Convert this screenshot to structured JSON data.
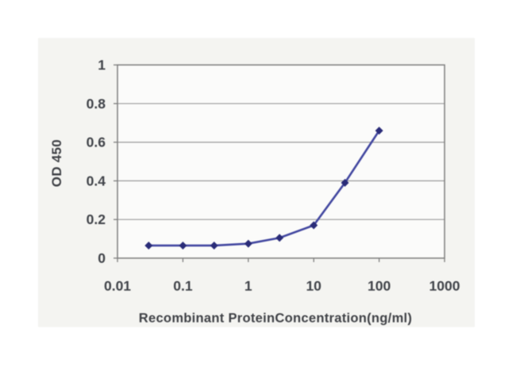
{
  "chart_data": {
    "type": "line",
    "title": "",
    "xlabel": "Recombinant ProteinConcentration(ng/ml)",
    "ylabel": "OD 450",
    "x_scale": "log",
    "xlim": [
      0.01,
      1000
    ],
    "ylim": [
      0,
      1
    ],
    "x_ticks": [
      0.01,
      0.1,
      1,
      10,
      100,
      1000
    ],
    "x_tick_labels": [
      "0.01",
      "0.1",
      "1",
      "10",
      "100",
      "1000"
    ],
    "y_ticks": [
      0,
      0.2,
      0.4,
      0.6,
      0.8,
      1
    ],
    "y_tick_labels": [
      "0",
      "0.2",
      "0.4",
      "0.6",
      "0.8",
      "1"
    ],
    "grid": "horizontal",
    "legend": "none",
    "series": [
      {
        "name": "OD 450",
        "marker": "diamond",
        "x": [
          0.03,
          0.1,
          0.3,
          1,
          3,
          10,
          30,
          100
        ],
        "y": [
          0.065,
          0.065,
          0.065,
          0.075,
          0.105,
          0.17,
          0.39,
          0.66
        ]
      }
    ],
    "colors": {
      "panel_bg": "#f4f4f1",
      "plot_bg": "#fbfbfa",
      "grid": "#9a9a9a",
      "frame": "#7e7e7e",
      "tick_text": "#404349",
      "line": "#4247a0",
      "marker": "#2a2c78"
    }
  }
}
